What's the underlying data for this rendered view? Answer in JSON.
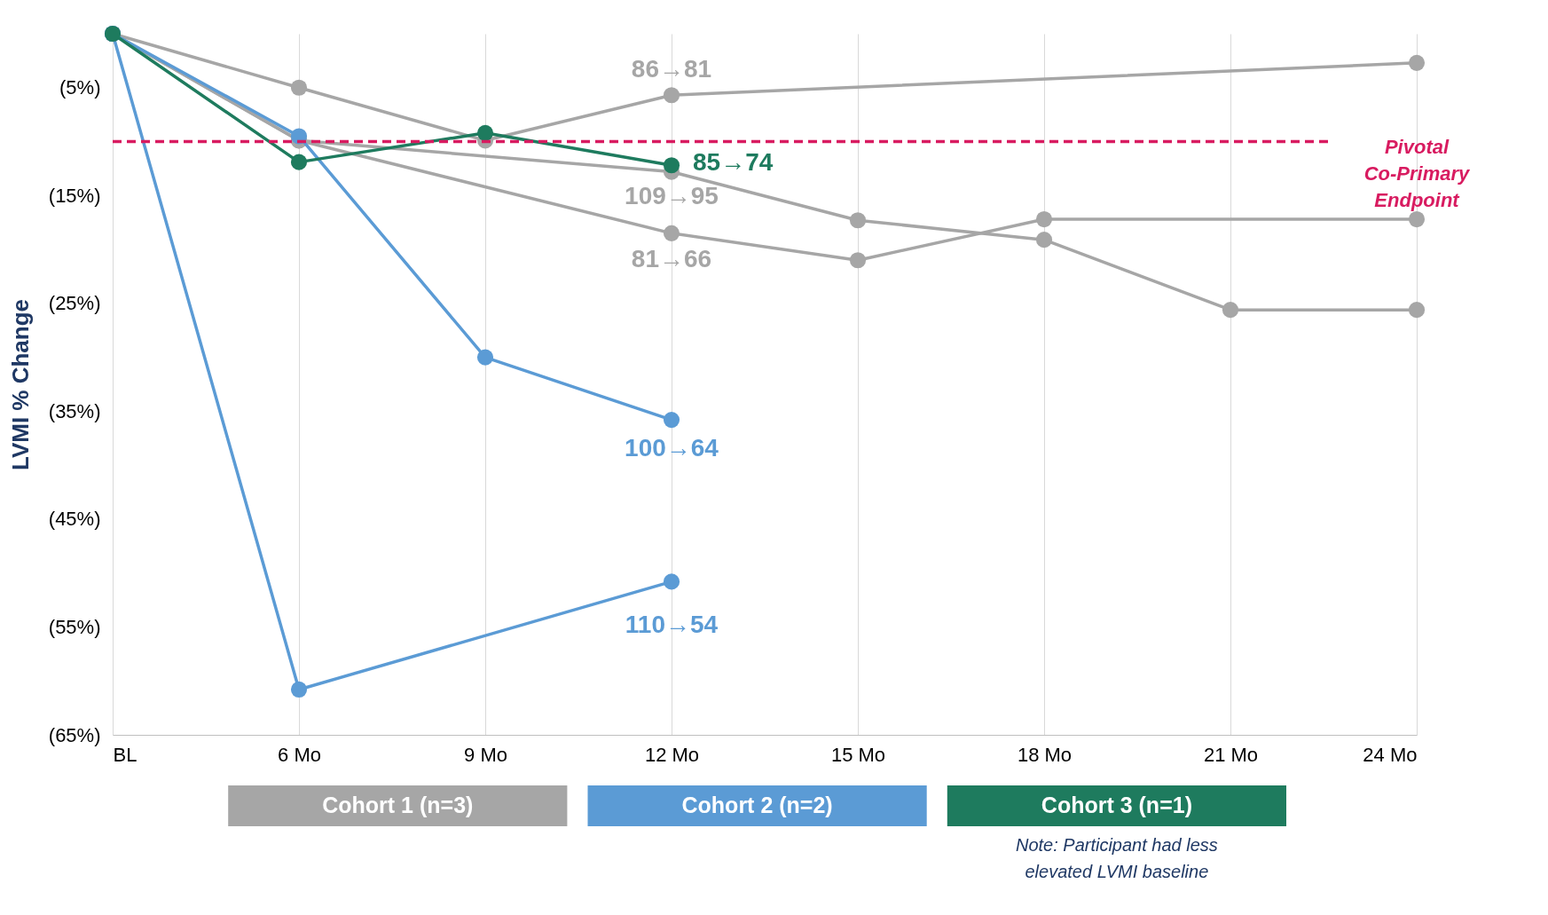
{
  "chart_data": {
    "type": "line",
    "ylabel": "LVMI % Change",
    "categories": [
      "BL",
      "6 Mo",
      "9 Mo",
      "12 Mo",
      "15 Mo",
      "18 Mo",
      "21 Mo",
      "24 Mo"
    ],
    "series": [
      {
        "color": "#a6a6a6",
        "values": [
          0,
          -5,
          -9.9,
          -5.7,
          null,
          null,
          null,
          -2.7
        ]
      },
      {
        "color": "#a6a6a6",
        "values": [
          0,
          -9.9,
          null,
          -12.8,
          -17.3,
          -19.1,
          -25.6,
          -25.6
        ]
      },
      {
        "color": "#a6a6a6",
        "values": [
          0,
          -9.9,
          null,
          -18.5,
          -21,
          -17.2,
          null,
          -17.2
        ]
      },
      {
        "color": "#5b9bd5",
        "values": [
          0,
          -9.5,
          -30,
          -35.8,
          null,
          null,
          null,
          null
        ]
      },
      {
        "color": "#5b9bd5",
        "values": [
          0,
          -60.8,
          null,
          -50.8,
          null,
          null,
          null,
          null
        ]
      },
      {
        "color": "#1e7b5e",
        "values": [
          0,
          -11.9,
          -9.2,
          -12.2,
          null,
          null,
          null,
          null
        ]
      }
    ],
    "ylim": [
      -65,
      0
    ],
    "yticks": [
      {
        "value": -5,
        "label": "(5%)"
      },
      {
        "value": -15,
        "label": "(15%)"
      },
      {
        "value": -25,
        "label": "(25%)"
      },
      {
        "value": -35,
        "label": "(35%)"
      },
      {
        "value": -45,
        "label": "(45%)"
      },
      {
        "value": -55,
        "label": "(55%)"
      },
      {
        "value": -65,
        "label": "(65%)"
      }
    ],
    "grid": "x",
    "marker": "circle",
    "line_style": "solid",
    "ref_lines": [
      {
        "axis": "y",
        "value": -10,
        "label": "Pivotal Co-Primary Endpoint",
        "color": "#d81b60",
        "line_style": "dashed"
      }
    ],
    "annotations": [
      {
        "text": "86→81",
        "x": "12 Mo",
        "y": -5.7
      },
      {
        "text": "85→74",
        "x": "12 Mo",
        "y": -12.2
      },
      {
        "text": "109→95",
        "x": "12 Mo",
        "y": -12.8
      },
      {
        "text": "81→66",
        "x": "12 Mo",
        "y": -18.5
      },
      {
        "text": "100→64",
        "x": "12 Mo",
        "y": -35.8
      },
      {
        "text": "110→54",
        "x": "12 Mo",
        "y": -50.8
      },
      "Cohort 1 (n=3)",
      "Cohort 2 (n=2)",
      "Cohort 3 (n=1)",
      "Note: Participant had less elevated LVMI baseline"
    ]
  }
}
